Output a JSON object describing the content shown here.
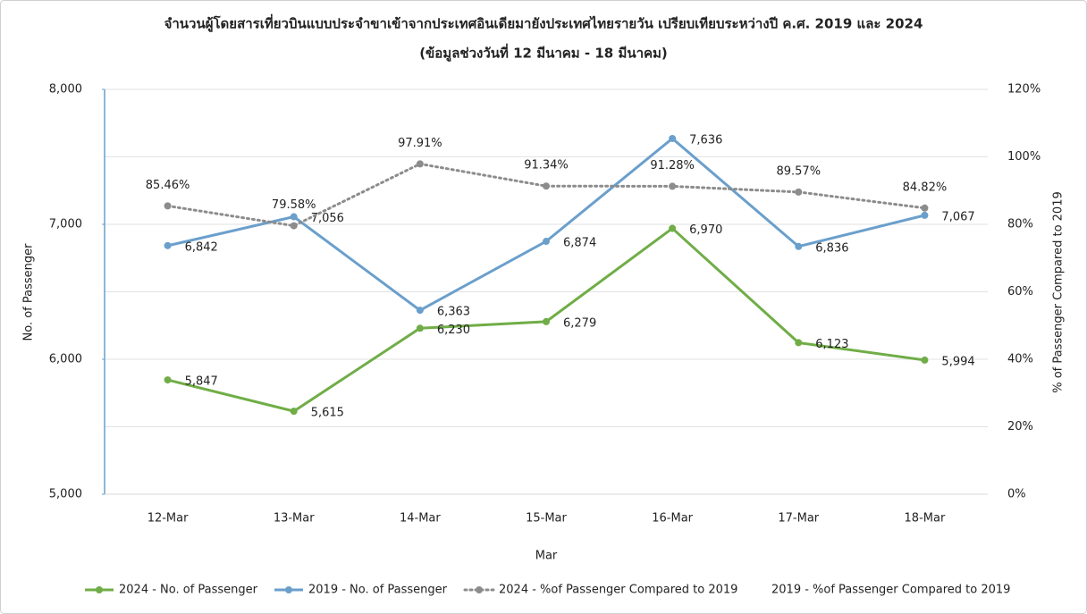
{
  "chart_data": {
    "type": "line",
    "title": "จำนวนผู้โดยสารเที่ยวบินแบบประจำขาเข้าจากประเทศอินเดียมายังประเทศไทยรายวัน  เปรียบเทียบระหว่างปี  ค.ศ. 2019 และ 2024",
    "subtitle": "(ข้อมูลช่วงวันที่ 12 มีนาคม - 18 มีนาคม)",
    "x_label": "Mar",
    "y_label": "No. of Passenger",
    "y2_label": "% of Passenger Compared to 2019",
    "categories": [
      "12-Mar",
      "13-Mar",
      "14-Mar",
      "15-Mar",
      "16-Mar",
      "17-Mar",
      "18-Mar"
    ],
    "series": [
      {
        "name": "2024 - No. of Passenger",
        "color": "#70ad47",
        "values": [
          5847,
          5615,
          6230,
          6279,
          6970,
          6123,
          5994
        ],
        "value_labels": [
          "5,847",
          "5,615",
          "6,230",
          "6,279",
          "6,970",
          "6,123",
          "5,994"
        ]
      },
      {
        "name": "2019 - No. of Passenger",
        "color": "#6a9fcc",
        "values": [
          6842,
          7056,
          6363,
          6874,
          7636,
          6836,
          7067
        ],
        "value_labels": [
          "6,842",
          "7,056",
          "6,363",
          "6,874",
          "7,636",
          "6,836",
          "7,067"
        ]
      },
      {
        "name": "2024 - %of Passenger Compared to 2019",
        "color": "#8c8c8c",
        "axis": "y2",
        "dashed": true,
        "values": [
          85.46,
          79.58,
          97.91,
          91.34,
          91.28,
          89.57,
          84.82
        ],
        "value_labels": [
          "85.46%",
          "79.58%",
          "97.91%",
          "91.34%",
          "91.28%",
          "89.57%",
          "84.82%"
        ]
      },
      {
        "name": "2019 - %of Passenger Compared to 2019",
        "color": "#a5a5a5",
        "axis": "y2",
        "values": [
          null,
          null,
          null,
          null,
          null,
          null,
          null
        ]
      }
    ],
    "ylim": [
      5000,
      8000
    ],
    "yticks": [
      {
        "value": 5000,
        "label": "5,000"
      },
      {
        "value": 6000,
        "label": "6,000"
      },
      {
        "value": 7000,
        "label": "7,000"
      },
      {
        "value": 8000,
        "label": "8,000"
      }
    ],
    "y2lim": [
      0,
      120
    ],
    "y2ticks": [
      {
        "value": 0,
        "label": "0%"
      },
      {
        "value": 20,
        "label": "20%"
      },
      {
        "value": 40,
        "label": "40%"
      },
      {
        "value": 60,
        "label": "60%"
      },
      {
        "value": 80,
        "label": "80%"
      },
      {
        "value": 100,
        "label": "100%"
      },
      {
        "value": 120,
        "label": "120%"
      }
    ],
    "grid": true,
    "legend": "bottom"
  }
}
